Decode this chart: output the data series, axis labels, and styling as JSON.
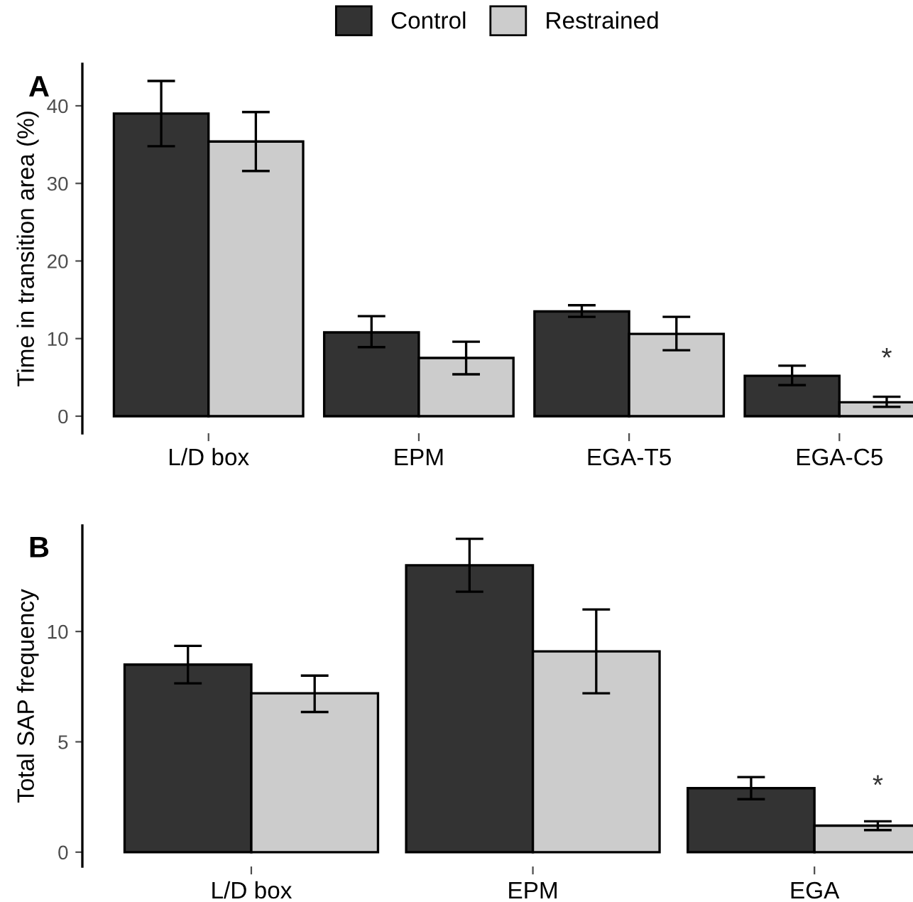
{
  "chart_data": [
    {
      "type": "bar",
      "title": "A",
      "ylabel": "Time in transition area (%)",
      "categories": [
        "L/D box",
        "EPM",
        "EGA-T5",
        "EGA-C5"
      ],
      "series": [
        {
          "name": "Control",
          "color": "#333333",
          "values": [
            39.0,
            10.8,
            13.5,
            5.2
          ],
          "errors": [
            [
              34.8,
              43.2
            ],
            [
              8.9,
              12.9
            ],
            [
              12.8,
              14.3
            ],
            [
              4.0,
              6.5
            ]
          ]
        },
        {
          "name": "Restrained",
          "color": "#cccccc",
          "values": [
            35.4,
            7.5,
            10.6,
            1.8
          ],
          "errors": [
            [
              31.6,
              39.2
            ],
            [
              5.4,
              9.6
            ],
            [
              8.5,
              12.8
            ],
            [
              1.2,
              2.5
            ]
          ]
        }
      ],
      "ylim": [
        -2.2,
        45.4
      ],
      "yticks": [
        0,
        10,
        20,
        30,
        40
      ],
      "grid": false,
      "legend": "top",
      "annotations": [
        "*"
      ]
    },
    {
      "type": "bar",
      "title": "B",
      "ylabel": "Total SAP frequency",
      "categories": [
        "L/D box",
        "EPM",
        "EGA"
      ],
      "series": [
        {
          "color": "#333333",
          "values": [
            8.5,
            13.0,
            2.9
          ],
          "errors": [
            [
              7.65,
              9.35
            ],
            [
              11.8,
              14.2
            ],
            [
              2.4,
              3.4
            ]
          ]
        },
        {
          "color": "#cccccc",
          "values": [
            7.2,
            9.1,
            1.2
          ],
          "errors": [
            [
              6.35,
              8.0
            ],
            [
              7.2,
              11.0
            ],
            [
              1.0,
              1.4
            ]
          ]
        }
      ],
      "ylim": [
        -0.65,
        14.8
      ],
      "yticks": [
        0,
        5,
        10
      ],
      "grid": false,
      "legend": false,
      "annotations": [
        "*"
      ]
    }
  ]
}
